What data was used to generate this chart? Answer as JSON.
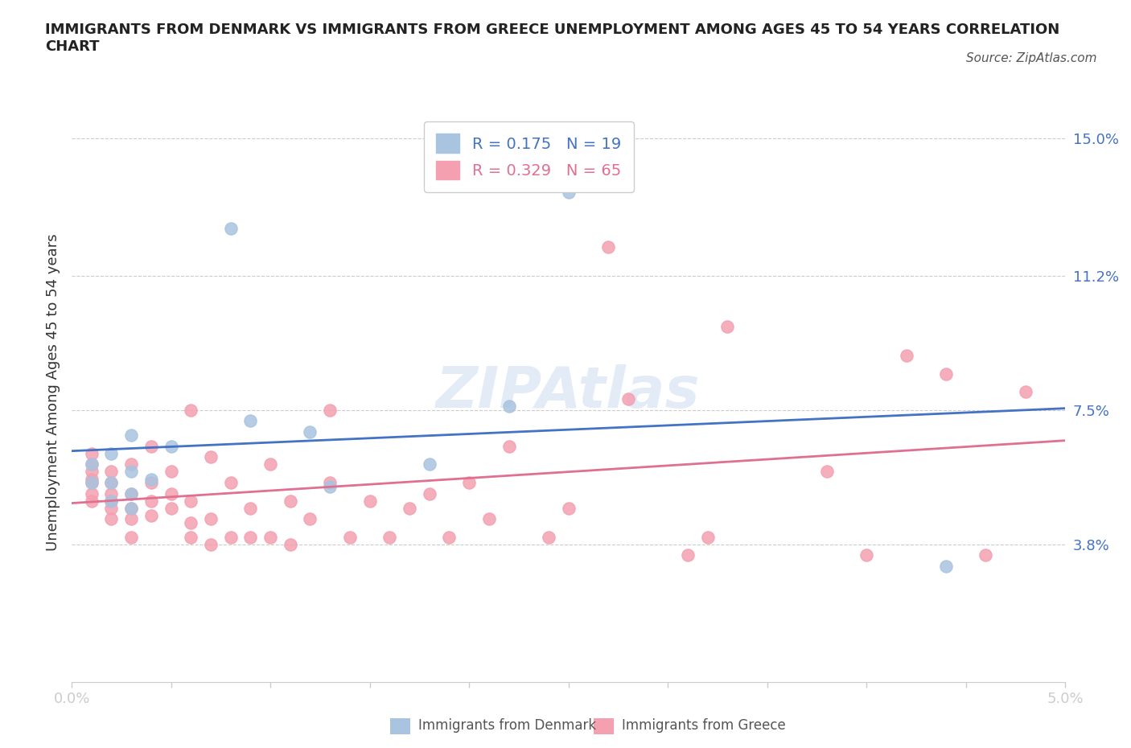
{
  "title": "IMMIGRANTS FROM DENMARK VS IMMIGRANTS FROM GREECE UNEMPLOYMENT AMONG AGES 45 TO 54 YEARS CORRELATION\nCHART",
  "source": "Source: ZipAtlas.com",
  "xlabel": "",
  "ylabel": "Unemployment Among Ages 45 to 54 years",
  "xlim": [
    0.0,
    0.05
  ],
  "ylim": [
    0.0,
    0.16
  ],
  "yticks": [
    0.038,
    0.075,
    0.112,
    0.15
  ],
  "ytick_labels": [
    "3.8%",
    "7.5%",
    "11.2%",
    "15.0%"
  ],
  "xticks": [
    0.0,
    0.005,
    0.01,
    0.015,
    0.02,
    0.025,
    0.03,
    0.035,
    0.04,
    0.045,
    0.05
  ],
  "xtick_labels": [
    "0.0%",
    "",
    "",
    "",
    "",
    "",
    "",
    "",
    "",
    "",
    "5.0%"
  ],
  "denmark_color": "#a8c4e0",
  "greece_color": "#f4a0b0",
  "denmark_line_color": "#4472c4",
  "greece_line_color": "#e07090",
  "denmark_R": 0.175,
  "denmark_N": 19,
  "greece_R": 0.329,
  "greece_N": 65,
  "watermark": "ZIPAtlas",
  "denmark_x": [
    0.001,
    0.001,
    0.002,
    0.002,
    0.002,
    0.003,
    0.003,
    0.003,
    0.003,
    0.004,
    0.005,
    0.008,
    0.009,
    0.012,
    0.013,
    0.018,
    0.022,
    0.025,
    0.044
  ],
  "denmark_y": [
    0.055,
    0.06,
    0.05,
    0.055,
    0.063,
    0.048,
    0.052,
    0.058,
    0.068,
    0.056,
    0.065,
    0.125,
    0.072,
    0.069,
    0.054,
    0.06,
    0.076,
    0.135,
    0.032
  ],
  "greece_x": [
    0.001,
    0.001,
    0.001,
    0.001,
    0.001,
    0.001,
    0.001,
    0.002,
    0.002,
    0.002,
    0.002,
    0.002,
    0.002,
    0.003,
    0.003,
    0.003,
    0.003,
    0.003,
    0.004,
    0.004,
    0.004,
    0.004,
    0.005,
    0.005,
    0.005,
    0.006,
    0.006,
    0.006,
    0.006,
    0.007,
    0.007,
    0.007,
    0.008,
    0.008,
    0.009,
    0.009,
    0.01,
    0.01,
    0.011,
    0.011,
    0.012,
    0.013,
    0.013,
    0.014,
    0.015,
    0.016,
    0.017,
    0.018,
    0.019,
    0.02,
    0.021,
    0.022,
    0.024,
    0.025,
    0.027,
    0.028,
    0.031,
    0.032,
    0.033,
    0.038,
    0.04,
    0.042,
    0.044,
    0.046,
    0.048
  ],
  "greece_y": [
    0.05,
    0.052,
    0.055,
    0.056,
    0.058,
    0.06,
    0.063,
    0.045,
    0.048,
    0.05,
    0.052,
    0.055,
    0.058,
    0.04,
    0.045,
    0.048,
    0.052,
    0.06,
    0.046,
    0.05,
    0.055,
    0.065,
    0.048,
    0.052,
    0.058,
    0.04,
    0.044,
    0.05,
    0.075,
    0.038,
    0.045,
    0.062,
    0.04,
    0.055,
    0.04,
    0.048,
    0.04,
    0.06,
    0.038,
    0.05,
    0.045,
    0.055,
    0.075,
    0.04,
    0.05,
    0.04,
    0.048,
    0.052,
    0.04,
    0.055,
    0.045,
    0.065,
    0.04,
    0.048,
    0.12,
    0.078,
    0.035,
    0.04,
    0.098,
    0.058,
    0.035,
    0.09,
    0.085,
    0.035,
    0.08
  ]
}
